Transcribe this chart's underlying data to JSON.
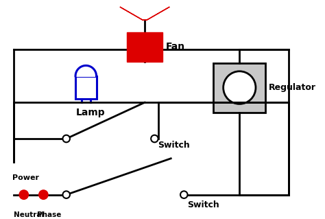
{
  "bg_color": "#ffffff",
  "line_color": "#000000",
  "line_width": 2.0,
  "fan_color": "#dd0000",
  "lamp_color": "#0000cc",
  "regulator_fill": "#c8c8c8",
  "regulator_edge": "#000000",
  "power_color": "#dd0000",
  "labels": {
    "fan": "Fan",
    "lamp": "Lamp",
    "regulator": "Regulator",
    "power": "Power",
    "neutral": "Neutral",
    "phase": "Phase",
    "switch1": "Switch",
    "switch2": "Switch"
  },
  "figsize": [
    4.74,
    3.19
  ],
  "dpi": 100,
  "xlim": [
    0,
    47.4
  ],
  "ylim": [
    0,
    31.9
  ]
}
